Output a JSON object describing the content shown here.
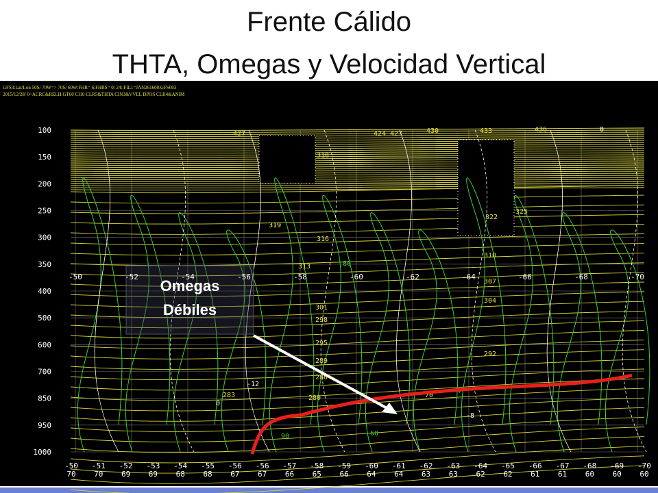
{
  "slide": {
    "title_line1": "Frente Cálido",
    "title_line2": "THTA, Omegas y Velocidad Vertical"
  },
  "figure": {
    "header": [
      "GFS3:Lat/Lon 50S/ 70W=> 70S/ 60W:FHR= 6:FHRS= 0/ 24::FIL1=JAN261600.GFS003",
      "2015/12/28/ 0~ACRC&RELH GT60 CI10 CLR5&THTA CIN3&VVEL DPOS CLR4&ANIM"
    ],
    "pressure_levels": [
      "100",
      "150",
      "200",
      "250",
      "300",
      "350",
      "400",
      "500",
      "600",
      "700",
      "850",
      "950",
      "1000"
    ],
    "longitudes": [
      "-50",
      "-52",
      "-54",
      "-56",
      "-58",
      "-60",
      "-62",
      "-64",
      "-66",
      "-68",
      "-70"
    ],
    "bottom_lon": [
      "-50",
      "-51",
      "-52",
      "-53",
      "-54",
      "-55",
      "-56",
      "-56",
      "-57",
      "-58",
      "-59",
      "-60",
      "-61",
      "-62",
      "-63",
      "-64",
      "-65",
      "-66",
      "-67",
      "-68",
      "-69",
      "-70"
    ],
    "bottom_lat": [
      "70",
      "70",
      "69",
      "69",
      "68",
      "68",
      "67",
      "67",
      "66",
      "65",
      "66",
      "64",
      "64",
      "63",
      "63",
      "62",
      "62",
      "61",
      "61",
      "60",
      "60",
      "60"
    ],
    "contour_labels": [
      "427",
      "424 427",
      "430",
      "433",
      "436",
      "0",
      "318",
      "316",
      "319",
      "325",
      "322",
      "319",
      "313",
      "310",
      "307",
      "304",
      "301",
      "298",
      "295",
      "292",
      "289",
      "286",
      "283",
      "280",
      "70",
      "80",
      "90",
      "60",
      "-4",
      "-12",
      "0",
      "-8"
    ],
    "annotation": [
      "Omegas",
      "Débiles"
    ]
  }
}
